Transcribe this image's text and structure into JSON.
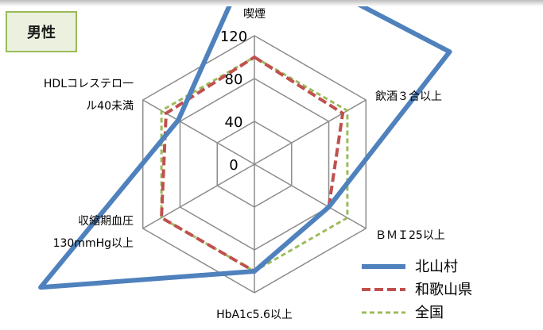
{
  "badge": {
    "label": "男性"
  },
  "chart_data": {
    "type": "radar",
    "axes": [
      "喫煙",
      "飲酒３合以上",
      "ＢＭＩ25以上",
      "HbA1c5.6以上",
      "収縮期血圧 130mmHg以上",
      "HDLコレステロール40未満"
    ],
    "axis_label_lines": [
      [
        "喫煙"
      ],
      [
        "飲酒３合以上"
      ],
      [
        "ＢＭＩ25以上"
      ],
      [
        "HbA1c5.6以上"
      ],
      [
        "収縮期血圧",
        "130mmHg以上"
      ],
      [
        "HDLコレステロ一",
        "ル40未満"
      ]
    ],
    "ticks": [
      0,
      40,
      80,
      120
    ],
    "range": [
      0,
      120
    ],
    "series": [
      {
        "name": "北山村",
        "values": [
          200,
          210,
          80,
          100,
          230,
          82
        ],
        "color": "#4f81bd",
        "style": "solid"
      },
      {
        "name": "和歌山県",
        "values": [
          100,
          95,
          80,
          100,
          100,
          95
        ],
        "color": "#c0504d",
        "style": "dashed"
      },
      {
        "name": "全国",
        "values": [
          100,
          100,
          100,
          100,
          100,
          100
        ],
        "color": "#9bbb59",
        "style": "dashed"
      }
    ]
  }
}
